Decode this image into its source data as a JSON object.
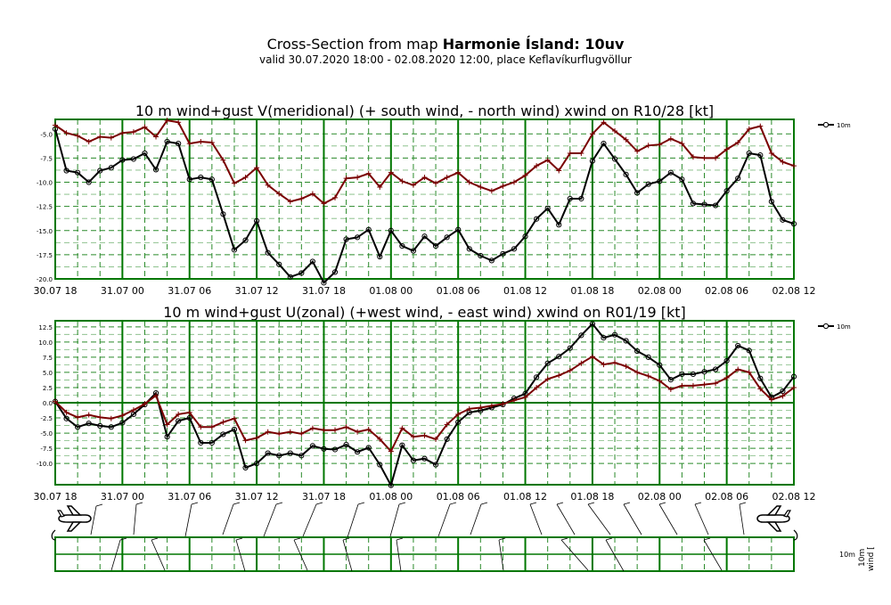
{
  "header": {
    "title_prefix": "Cross-Section from map ",
    "title_bold": "Harmonie Ísland: 10uv",
    "subtitle": "valid 30.07.2020 18:00 - 02.08.2020 12:00, place Keflavíkurflugvöllur"
  },
  "colors": {
    "frame": "#007700",
    "grid": "#2a8a2a",
    "wind": "#000000",
    "gust": "#7a0000"
  },
  "xticks": [
    "30.07 18",
    "31.07 00",
    "31.07 06",
    "31.07 12",
    "31.07 18",
    "01.08 00",
    "01.08 06",
    "01.08 12",
    "01.08 18",
    "02.08 00",
    "02.08 06",
    "02.08 12"
  ],
  "chart_data": [
    {
      "type": "line",
      "title": "10 m wind+gust V(meridional) (+ south wind, - north wind) xwind on R10/28 [kt]",
      "ylim": [
        -20,
        -3.5
      ],
      "yticks": [
        -20.0,
        -17.5,
        -15.0,
        -12.5,
        -10.0,
        -7.5,
        -5.0
      ],
      "grid": true,
      "legend": "top-right",
      "series": [
        {
          "name": "10m",
          "color": "#000000",
          "marker": "circle",
          "values": [
            -4.5,
            -8.8,
            -9.0,
            -10.0,
            -8.8,
            -8.5,
            -7.7,
            -7.6,
            -7.0,
            -8.7,
            -5.8,
            -6.0,
            -9.7,
            -9.5,
            -9.7,
            -13.3,
            -17.0,
            -16.0,
            -14.0,
            -17.3,
            -18.5,
            -19.8,
            -19.4,
            -18.2,
            -20.4,
            -19.3,
            -15.9,
            -15.7,
            -14.9,
            -17.7,
            -15.0,
            -16.6,
            -17.1,
            -15.6,
            -16.6,
            -15.7,
            -14.9,
            -16.9,
            -17.6,
            -18.1,
            -17.4,
            -16.9,
            -15.6,
            -13.8,
            -12.7,
            -14.4,
            -11.7,
            -11.7,
            -7.8,
            -6.0,
            -7.6,
            -9.2,
            -11.1,
            -10.2,
            -9.9,
            -9.0,
            -9.7,
            -12.2,
            -12.3,
            -12.4,
            -10.9,
            -9.6,
            -7.0,
            -7.2,
            -12.0,
            -13.9,
            -14.3
          ]
        },
        {
          "name": "",
          "color": "#7a0000",
          "marker": "plus",
          "values": [
            -4.1,
            -4.9,
            -5.2,
            -5.8,
            -5.3,
            -5.4,
            -4.9,
            -4.8,
            -4.3,
            -5.3,
            -3.6,
            -3.8,
            -6.0,
            -5.8,
            -5.9,
            -7.7,
            -10.1,
            -9.5,
            -8.5,
            -10.3,
            -11.2,
            -12.0,
            -11.7,
            -11.2,
            -12.2,
            -11.6,
            -9.6,
            -9.5,
            -9.1,
            -10.5,
            -9.0,
            -9.9,
            -10.3,
            -9.5,
            -10.1,
            -9.5,
            -9.0,
            -10.0,
            -10.5,
            -10.9,
            -10.4,
            -10.0,
            -9.3,
            -8.3,
            -7.7,
            -8.8,
            -7.0,
            -7.0,
            -5.0,
            -3.8,
            -4.7,
            -5.6,
            -6.8,
            -6.2,
            -6.1,
            -5.5,
            -6.0,
            -7.4,
            -7.5,
            -7.5,
            -6.6,
            -5.9,
            -4.5,
            -4.2,
            -7.0,
            -7.9,
            -8.3
          ]
        }
      ]
    },
    {
      "type": "line",
      "title": "10 m wind+gust U(zonal) (+west wind, - east wind) xwind on R01/19 [kt]",
      "ylim": [
        -13.5,
        13.5
      ],
      "yticks": [
        -10.0,
        -7.5,
        -5.0,
        -2.5,
        0.0,
        2.5,
        5.0,
        7.5,
        10.0,
        12.5
      ],
      "grid": true,
      "legend": "top-right",
      "series": [
        {
          "name": "10m",
          "color": "#000000",
          "marker": "circle",
          "values": [
            0.2,
            -2.6,
            -4.0,
            -3.4,
            -3.8,
            -4.0,
            -3.3,
            -1.9,
            -0.3,
            1.6,
            -5.6,
            -3.0,
            -2.5,
            -6.6,
            -6.6,
            -5.2,
            -4.4,
            -10.7,
            -10.0,
            -8.3,
            -8.7,
            -8.3,
            -8.7,
            -7.1,
            -7.6,
            -7.7,
            -6.9,
            -8.1,
            -7.4,
            -10.2,
            -13.6,
            -7.0,
            -9.5,
            -9.2,
            -10.2,
            -6.0,
            -3.2,
            -1.6,
            -1.3,
            -0.8,
            -0.3,
            0.7,
            1.5,
            4.2,
            6.5,
            7.6,
            9.0,
            11.1,
            13.0,
            10.7,
            11.2,
            10.2,
            8.5,
            7.5,
            6.2,
            3.8,
            4.7,
            4.7,
            5.1,
            5.5,
            6.9,
            9.4,
            8.6,
            4.0,
            0.9,
            1.9,
            4.3
          ]
        },
        {
          "name": "",
          "color": "#7a0000",
          "marker": "plus",
          "values": [
            0.2,
            -1.6,
            -2.4,
            -2.0,
            -2.4,
            -2.6,
            -2.1,
            -1.2,
            -0.2,
            1.2,
            -3.6,
            -1.9,
            -1.6,
            -4.0,
            -4.0,
            -3.2,
            -2.6,
            -6.2,
            -5.8,
            -4.8,
            -5.1,
            -4.8,
            -5.1,
            -4.2,
            -4.5,
            -4.5,
            -4.0,
            -4.8,
            -4.4,
            -6.0,
            -8.0,
            -4.2,
            -5.6,
            -5.4,
            -6.0,
            -3.6,
            -1.9,
            -1.0,
            -0.8,
            -0.5,
            -0.2,
            0.4,
            0.9,
            2.5,
            3.9,
            4.5,
            5.3,
            6.5,
            7.6,
            6.3,
            6.6,
            6.0,
            5.0,
            4.4,
            3.6,
            2.2,
            2.8,
            2.8,
            3.0,
            3.2,
            4.1,
            5.5,
            5.0,
            2.3,
            0.5,
            1.1,
            2.5
          ]
        }
      ]
    }
  ],
  "wind_panel": {
    "label": "10m",
    "axis_label": "wind [",
    "icons": [
      "airplane-icon",
      "airplane-icon"
    ]
  }
}
